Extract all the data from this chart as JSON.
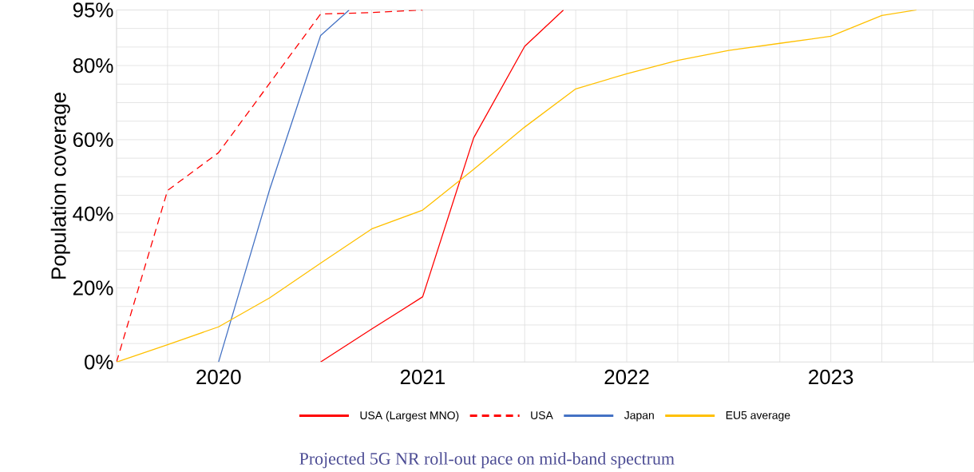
{
  "chart_data": {
    "type": "line",
    "ylabel": "Population coverage",
    "annotations": [
      "Projected 5G NR roll-out pace on mid-band spectrum"
    ],
    "series": [
      {
        "name": "USA (Largest MNO)",
        "color": "#ff0000",
        "x": [
          2020.5,
          2020.75,
          2021,
          2021.25,
          2021.5,
          2021.69
        ],
        "values": [
          0,
          8.9,
          17.6,
          60.5,
          85.2,
          95
        ]
      },
      {
        "name": "USA",
        "color": "#ff0000",
        "line_style": "dashed",
        "x": [
          2019.5,
          2019.75,
          2020,
          2020.25,
          2020.5,
          2020.75,
          2021
        ],
        "values": [
          0,
          46.3,
          56.5,
          75.2,
          93.9,
          94.3,
          95
        ]
      },
      {
        "name": "Japan",
        "color": "#4472c4",
        "x": [
          2020,
          2020.25,
          2020.5,
          2020.64
        ],
        "values": [
          0,
          46.5,
          88.1,
          95
        ]
      },
      {
        "name": "EU5 average",
        "color": "#ffc000",
        "x": [
          2019.5,
          2019.75,
          2020,
          2020.25,
          2020.5,
          2020.75,
          2021,
          2021.25,
          2021.5,
          2021.75,
          2022,
          2022.25,
          2022.5,
          2022.75,
          2023,
          2023.25,
          2023.42
        ],
        "values": [
          0,
          4.7,
          9.5,
          17.3,
          26.7,
          35.9,
          41.0,
          52.0,
          63.4,
          73.7,
          77.8,
          81.4,
          84.1,
          86.0,
          87.9,
          93.5,
          95
        ]
      }
    ],
    "xlim": [
      2019.5,
      2023.7
    ],
    "xticks": [
      {
        "value": 2019.5,
        "label": null
      },
      {
        "value": 2019.75,
        "label": null
      },
      2020,
      {
        "value": 2020.25,
        "label": null
      },
      {
        "value": 2020.5,
        "label": null
      },
      {
        "value": 2020.75,
        "label": null
      },
      2021,
      {
        "value": 2021.25,
        "label": null
      },
      {
        "value": 2021.5,
        "label": null
      },
      {
        "value": 2021.75,
        "label": null
      },
      2022,
      {
        "value": 2022.25,
        "label": null
      },
      {
        "value": 2022.5,
        "label": null
      },
      {
        "value": 2022.75,
        "label": null
      },
      2023,
      {
        "value": 2023.25,
        "label": null
      },
      {
        "value": 2023.5,
        "label": null
      }
    ],
    "ylim": [
      0,
      95
    ],
    "yticks": [
      {
        "value": 0,
        "label": "0%"
      },
      {
        "value": 5,
        "label": null
      },
      {
        "value": 10,
        "label": null
      },
      {
        "value": 15,
        "label": null
      },
      {
        "value": 20,
        "label": "20%"
      },
      {
        "value": 25,
        "label": null
      },
      {
        "value": 30,
        "label": null
      },
      {
        "value": 35,
        "label": null
      },
      {
        "value": 40,
        "label": "40%"
      },
      {
        "value": 45,
        "label": null
      },
      {
        "value": 50,
        "label": null
      },
      {
        "value": 55,
        "label": null
      },
      {
        "value": 60,
        "label": "60%"
      },
      {
        "value": 65,
        "label": null
      },
      {
        "value": 70,
        "label": null
      },
      {
        "value": 75,
        "label": null
      },
      {
        "value": 80,
        "label": "80%"
      },
      {
        "value": 85,
        "label": null
      },
      {
        "value": 90,
        "label": null
      },
      {
        "value": 95,
        "label": "95%"
      }
    ],
    "grid": true,
    "legend": "bottom"
  }
}
